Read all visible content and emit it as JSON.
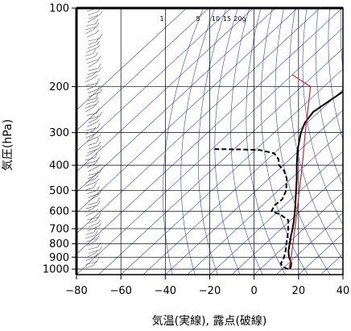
{
  "chart_data": {
    "type": "line",
    "subtype": "skew-T log-P diagram",
    "xlabel": "気温(実線), 露点(破線)",
    "ylabel": "気圧(hPa)",
    "xlim": [
      -80,
      40
    ],
    "ylim": [
      1050,
      100
    ],
    "y_scale": "log",
    "grid": true,
    "x_ticks": [
      -80,
      -60,
      -40,
      -20,
      0,
      20,
      40
    ],
    "x_tick_labels": [
      "−80",
      "−60",
      "−40",
      "−20",
      "0",
      "20",
      "40"
    ],
    "y_ticks": [
      100,
      200,
      300,
      400,
      500,
      600,
      700,
      800,
      900,
      1000
    ],
    "y_tick_labels": [
      "100",
      "200",
      "300",
      "400",
      "500",
      "600",
      "700",
      "800",
      "900",
      "1000"
    ],
    "mixing_ratio_labels": [
      "1",
      "5",
      "10",
      "15",
      "20g"
    ],
    "colors": {
      "isotherm": "#3344cc",
      "adiabat": "#3344cc",
      "parcel": "#dd2222",
      "temperature": "#000000",
      "dewpoint": "#000000",
      "grid": "#000000"
    },
    "series": [
      {
        "kind": "temperature",
        "style": "solid",
        "points": [
          {
            "p": 1000,
            "t": 13.5
          },
          {
            "p": 975,
            "t": 12.5
          },
          {
            "p": 950,
            "t": 11.2
          },
          {
            "p": 925,
            "t": 9.3
          },
          {
            "p": 900,
            "t": 7.2
          },
          {
            "p": 850,
            "t": 3.8
          },
          {
            "p": 800,
            "t": 1.0
          },
          {
            "p": 750,
            "t": -2.0
          },
          {
            "p": 700,
            "t": -5.0
          },
          {
            "p": 650,
            "t": -8.5
          },
          {
            "p": 600,
            "t": -12.5
          },
          {
            "p": 550,
            "t": -17.0
          },
          {
            "p": 500,
            "t": -22.0
          },
          {
            "p": 450,
            "t": -27.5
          },
          {
            "p": 400,
            "t": -34.0
          },
          {
            "p": 350,
            "t": -41.0
          },
          {
            "p": 300,
            "t": -48.0
          },
          {
            "p": 275,
            "t": -51.0
          },
          {
            "p": 250,
            "t": -52.5
          },
          {
            "p": 225,
            "t": -50.5
          },
          {
            "p": 210,
            "t": -49.0
          },
          {
            "p": 200,
            "t": -50.5
          },
          {
            "p": 190,
            "t": -52.5
          },
          {
            "p": 175,
            "t": -54.0
          },
          {
            "p": 150,
            "t": -57.0
          },
          {
            "p": 130,
            "t": -60.0
          },
          {
            "p": 115,
            "t": -62.0
          },
          {
            "p": 100,
            "t": -63.5
          }
        ]
      },
      {
        "kind": "dewpoint",
        "style": "dashed",
        "points": [
          {
            "p": 1000,
            "t": 12.5
          },
          {
            "p": 975,
            "t": 8.5
          },
          {
            "p": 950,
            "t": 6.5
          },
          {
            "p": 925,
            "t": 6.0
          },
          {
            "p": 900,
            "t": 5.0
          },
          {
            "p": 850,
            "t": 2.5
          },
          {
            "p": 800,
            "t": -0.5
          },
          {
            "p": 750,
            "t": -3.5
          },
          {
            "p": 700,
            "t": -7.0
          },
          {
            "p": 650,
            "t": -11.0
          },
          {
            "p": 620,
            "t": -17.0
          },
          {
            "p": 600,
            "t": -23.0
          },
          {
            "p": 570,
            "t": -24.5
          },
          {
            "p": 540,
            "t": -24.0
          },
          {
            "p": 500,
            "t": -26.5
          },
          {
            "p": 450,
            "t": -32.0
          },
          {
            "p": 420,
            "t": -37.0
          },
          {
            "p": 400,
            "t": -42.0
          },
          {
            "p": 380,
            "t": -45.0
          },
          {
            "p": 360,
            "t": -50.0
          },
          {
            "p": 350,
            "t": -58.0
          },
          {
            "p": 348,
            "t": -67.0
          },
          {
            "p": 347,
            "t": -80.0
          }
        ]
      },
      {
        "kind": "parcel",
        "style": "solid",
        "points": [
          {
            "p": 1000,
            "t": 13.0
          },
          {
            "p": 900,
            "t": 8.2
          },
          {
            "p": 800,
            "t": 2.5
          },
          {
            "p": 700,
            "t": -4.0
          },
          {
            "p": 600,
            "t": -11.5
          },
          {
            "p": 500,
            "t": -20.5
          },
          {
            "p": 400,
            "t": -31.5
          },
          {
            "p": 300,
            "t": -46.0
          },
          {
            "p": 250,
            "t": -55.0
          },
          {
            "p": 200,
            "t": -66.0
          },
          {
            "p": 180,
            "t": -80.0
          }
        ]
      }
    ],
    "wind_barb_count": 70
  }
}
